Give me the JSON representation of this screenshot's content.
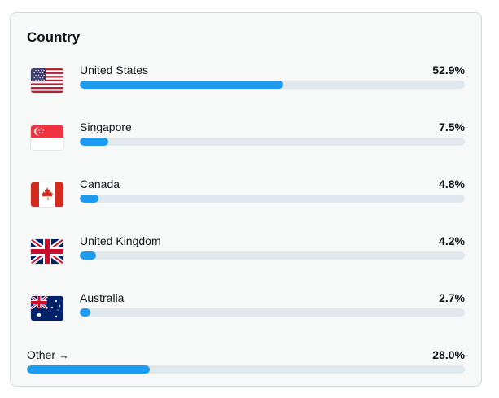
{
  "panel": {
    "title": "Country"
  },
  "countries": [
    {
      "name": "United States",
      "percent_label": "52.9%",
      "percent": 52.9,
      "flag_icon": "us-flag-icon"
    },
    {
      "name": "Singapore",
      "percent_label": "7.5%",
      "percent": 7.5,
      "flag_icon": "sg-flag-icon"
    },
    {
      "name": "Canada",
      "percent_label": "4.8%",
      "percent": 4.8,
      "flag_icon": "ca-flag-icon"
    },
    {
      "name": "United Kingdom",
      "percent_label": "4.2%",
      "percent": 4.2,
      "flag_icon": "gb-flag-icon"
    },
    {
      "name": "Australia",
      "percent_label": "2.7%",
      "percent": 2.7,
      "flag_icon": "au-flag-icon"
    }
  ],
  "other": {
    "label": "Other",
    "arrow": "→",
    "percent_label": "28.0%",
    "percent": 28.0
  },
  "colors": {
    "bar_fill": "#1d9bf0",
    "bar_track": "#e1e8ed",
    "card_background": "#f7f9f9",
    "card_border": "#cfd9de"
  }
}
